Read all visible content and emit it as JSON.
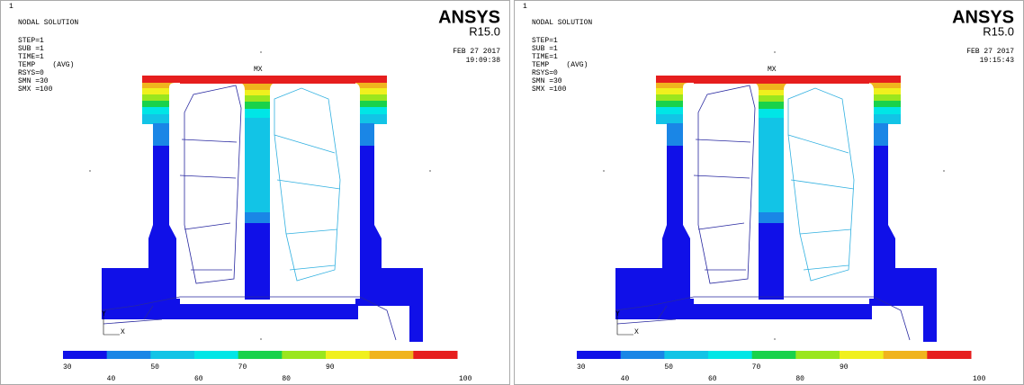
{
  "legend_colors": [
    "#1010e8",
    "#1a86e6",
    "#12c4e6",
    "#00e6e6",
    "#19d24b",
    "#9ae61e",
    "#f0f01e",
    "#f0b41e",
    "#e61e1e"
  ],
  "panels": [
    {
      "window_number": "1",
      "title": "NODAL SOLUTION",
      "info": [
        "STEP=1",
        "SUB =1",
        "TIME=1",
        "TEMP    (AVG)",
        "RSYS=0",
        "SMN =30",
        "SMX =100"
      ],
      "brand": "ANSYS",
      "version": "R15.0",
      "date": "FEB 27 2017",
      "time": "19:09:38",
      "max_label": "MX",
      "axis_y": "Y",
      "axis_x": "X",
      "legend_ticks": [
        30,
        40,
        50,
        60,
        70,
        80,
        90,
        100
      ]
    },
    {
      "window_number": "1",
      "title": "NODAL SOLUTION",
      "info": [
        "STEP=1",
        "SUB =1",
        "TIME=1",
        "TEMP    (AVG)",
        "RSYS=0",
        "SMN =30",
        "SMX =100"
      ],
      "brand": "ANSYS",
      "version": "R15.0",
      "date": "FEB 27 2017",
      "time": "19:15:43",
      "max_label": "MX",
      "axis_y": "Y",
      "axis_x": "X",
      "legend_ticks": [
        30,
        40,
        50,
        60,
        70,
        80,
        90,
        100
      ]
    }
  ]
}
